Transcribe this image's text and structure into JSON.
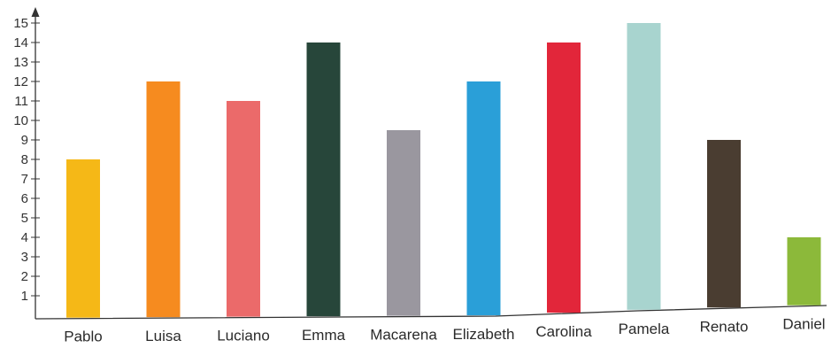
{
  "chart_data": {
    "type": "bar",
    "title": "",
    "xlabel": "",
    "ylabel": "",
    "ylim": [
      0,
      16
    ],
    "yticks": [
      1,
      2,
      3,
      4,
      5,
      6,
      7,
      8,
      9,
      10,
      11,
      12,
      13,
      14,
      15
    ],
    "grid": false,
    "legend": "none",
    "categories": [
      "Pablo",
      "Luisa",
      "Luciano",
      "Emma",
      "Macarena",
      "Elizabeth",
      "Carolina",
      "Pamela",
      "Renato",
      "Daniel"
    ],
    "values": [
      8,
      12,
      11,
      14,
      9.5,
      12,
      14,
      15,
      9,
      4
    ],
    "colors": [
      "#f5b817",
      "#f68b1f",
      "#eb6a6a",
      "#27463a",
      "#9a979f",
      "#2a9fd8",
      "#e2263a",
      "#a8d4cf",
      "#4a3d31",
      "#8cb93a"
    ]
  }
}
